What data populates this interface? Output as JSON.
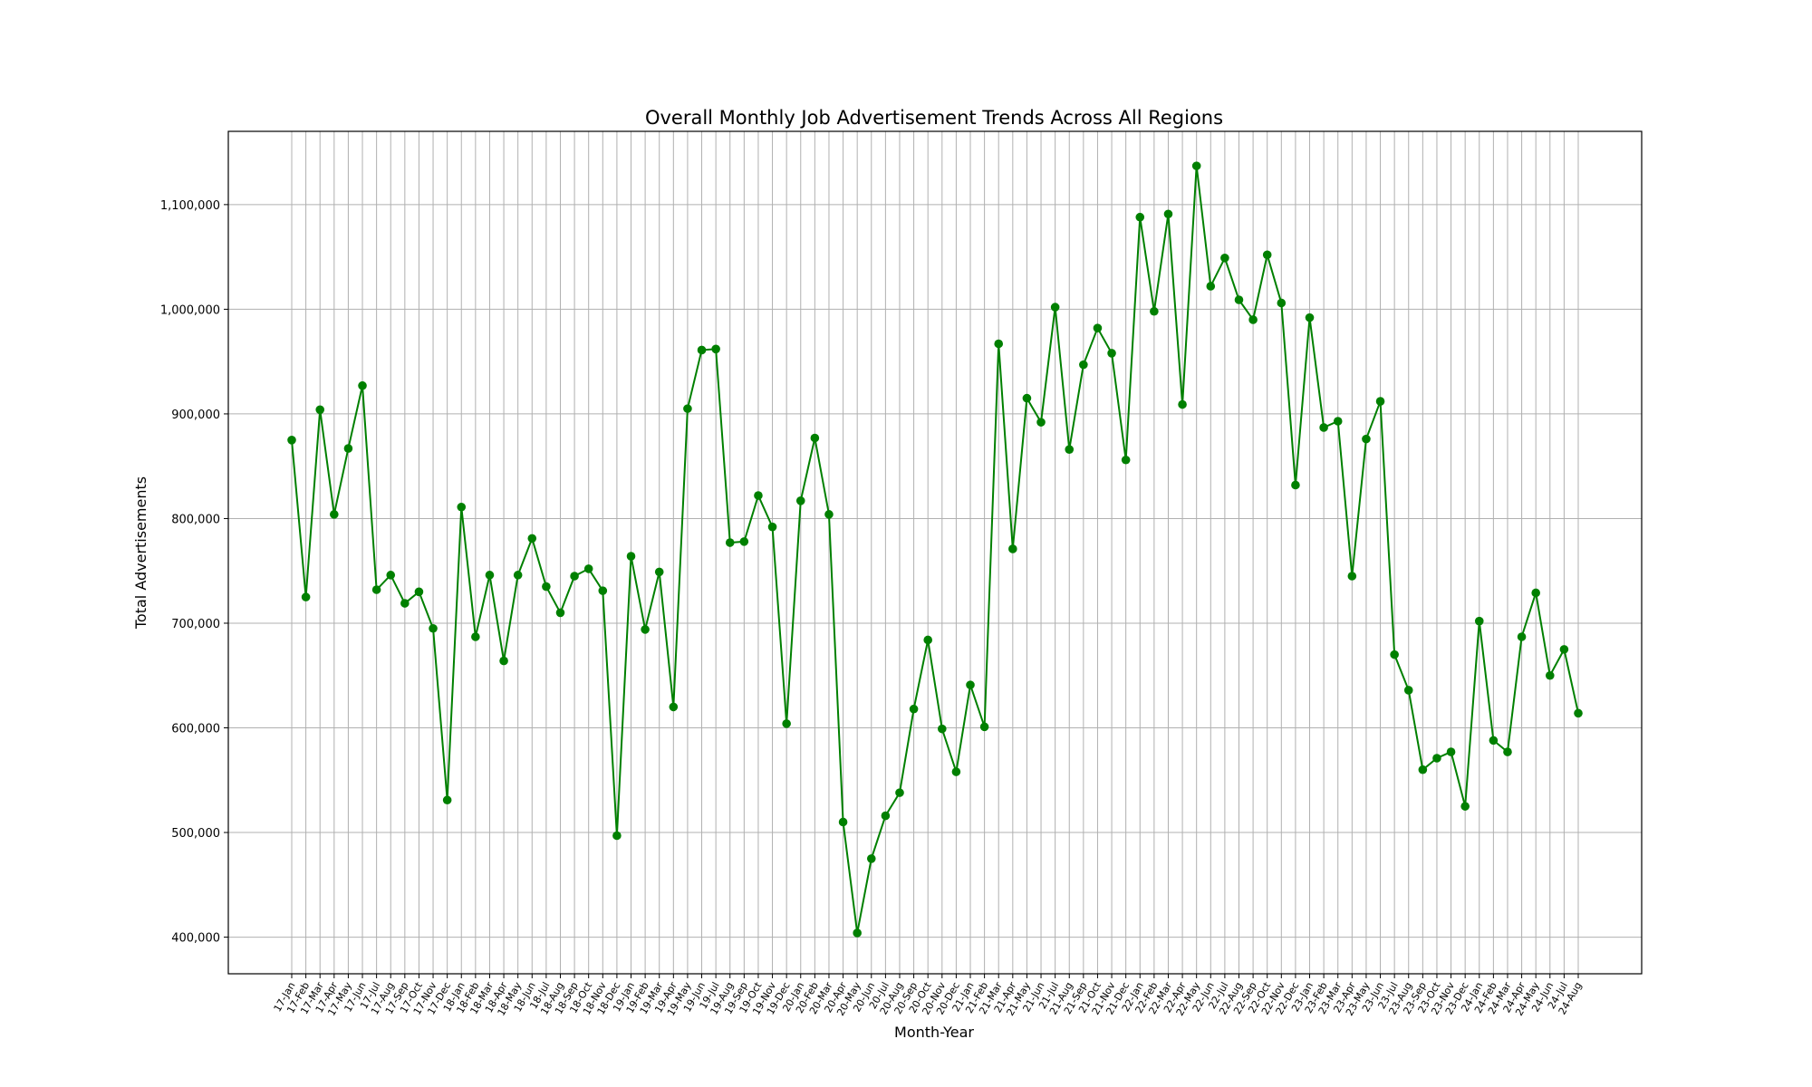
{
  "chart_data": {
    "type": "line",
    "title": "Overall Monthly Job Advertisement Trends Across All Regions",
    "xlabel": "Month-Year",
    "ylabel": "Total Advertisements",
    "ylim": [
      365000,
      1170000
    ],
    "yticks": [
      400000,
      500000,
      600000,
      700000,
      800000,
      900000,
      1000000,
      1100000
    ],
    "ytick_labels": [
      "400,000",
      "500,000",
      "600,000",
      "700,000",
      "800,000",
      "900,000",
      "1,000,000",
      "1,100,000"
    ],
    "grid": true,
    "line_color": "#008000",
    "categories": [
      "17-Jan",
      "17-Feb",
      "17-Mar",
      "17-Apr",
      "17-May",
      "17-Jun",
      "17-Jul",
      "17-Aug",
      "17-Sep",
      "17-Oct",
      "17-Nov",
      "17-Dec",
      "18-Jan",
      "18-Feb",
      "18-Mar",
      "18-Apr",
      "18-May",
      "18-Jun",
      "18-Jul",
      "18-Aug",
      "18-Sep",
      "18-Oct",
      "18-Nov",
      "18-Dec",
      "19-Jan",
      "19-Feb",
      "19-Mar",
      "19-Apr",
      "19-May",
      "19-Jun",
      "19-Jul",
      "19-Aug",
      "19-Sep",
      "19-Oct",
      "19-Nov",
      "19-Dec",
      "20-Jan",
      "20-Feb",
      "20-Mar",
      "20-Apr",
      "20-May",
      "20-Jun",
      "20-Jul",
      "20-Aug",
      "20-Sep",
      "20-Oct",
      "20-Nov",
      "20-Dec",
      "21-Jan",
      "21-Feb",
      "21-Mar",
      "21-Apr",
      "21-May",
      "21-Jun",
      "21-Jul",
      "21-Aug",
      "21-Sep",
      "21-Oct",
      "21-Nov",
      "21-Dec",
      "22-Jan",
      "22-Feb",
      "22-Mar",
      "22-Apr",
      "22-May",
      "22-Jun",
      "22-Jul",
      "22-Aug",
      "22-Sep",
      "22-Oct",
      "22-Nov",
      "22-Dec",
      "23-Jan",
      "23-Feb",
      "23-Mar",
      "23-Apr",
      "23-May",
      "23-Jun",
      "23-Jul",
      "23-Aug",
      "23-Sep",
      "23-Oct",
      "23-Nov",
      "23-Dec",
      "24-Jan",
      "24-Feb",
      "24-Mar",
      "24-Apr",
      "24-May",
      "24-Jun",
      "24-Jul",
      "24-Aug"
    ],
    "values": [
      875000,
      725000,
      904000,
      804000,
      867000,
      927000,
      732000,
      746000,
      719000,
      730000,
      695000,
      531000,
      811000,
      687000,
      746000,
      664000,
      746000,
      781000,
      735000,
      710000,
      745000,
      752000,
      731000,
      497000,
      764000,
      694000,
      749000,
      620000,
      905000,
      961000,
      962000,
      777000,
      778000,
      822000,
      792000,
      604000,
      817000,
      877000,
      804000,
      510000,
      404000,
      475000,
      516000,
      538000,
      618000,
      684000,
      599000,
      558000,
      641000,
      601000,
      967000,
      771000,
      915000,
      892000,
      1002000,
      866000,
      947000,
      982000,
      958000,
      856000,
      1088000,
      998000,
      1091000,
      909000,
      1137000,
      1022000,
      1049000,
      1009000,
      990000,
      1052000,
      1006000,
      832000,
      992000,
      887000,
      893000,
      745000,
      876000,
      912000,
      670000,
      636000,
      560000,
      571000,
      577000,
      525000,
      702000,
      588000,
      577000,
      687000,
      729000,
      650000,
      675000,
      614000
    ]
  }
}
